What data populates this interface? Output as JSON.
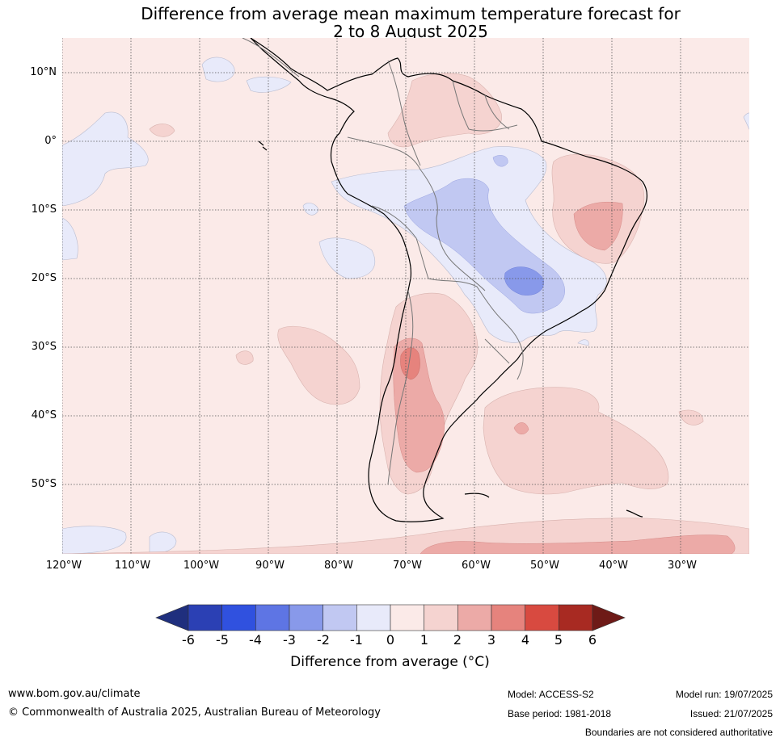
{
  "title": {
    "line1": "Difference from average mean maximum temperature forecast for",
    "line2": "2 to 8 August 2025"
  },
  "map": {
    "lat_labels": [
      "10°N",
      "0°",
      "10°S",
      "20°S",
      "30°S",
      "40°S",
      "50°S"
    ],
    "lon_labels": [
      "120°W",
      "110°W",
      "100°W",
      "90°W",
      "80°W",
      "70°W",
      "60°W",
      "50°W",
      "40°W",
      "30°W"
    ],
    "background_anomaly_color": "#fbeae8"
  },
  "colorbar": {
    "ticks": [
      "-6",
      "-5",
      "-4",
      "-3",
      "-2",
      "-1",
      "0",
      "1",
      "2",
      "3",
      "4",
      "5",
      "6"
    ],
    "colors": [
      "#1f2f7e",
      "#2b40b4",
      "#3051df",
      "#5e75e4",
      "#8899ea",
      "#c1c8f2",
      "#e8eafa",
      "#fbeae8",
      "#f5d3d0",
      "#ecaaa7",
      "#e6837d",
      "#d84a40",
      "#a82a22",
      "#6e1a17"
    ],
    "label": "Difference from average (°C)"
  },
  "footer": {
    "website": "www.bom.gov.au/climate",
    "copyright": "© Commonwealth of Australia 2025, Australian Bureau of Meteorology",
    "model": "Model: ACCESS-S2",
    "base_period": "Base period: 1981-2018",
    "model_run": "Model run: 19/07/2025",
    "issued": "Issued: 21/07/2025",
    "boundaries": "Boundaries are not considered authoritative"
  }
}
